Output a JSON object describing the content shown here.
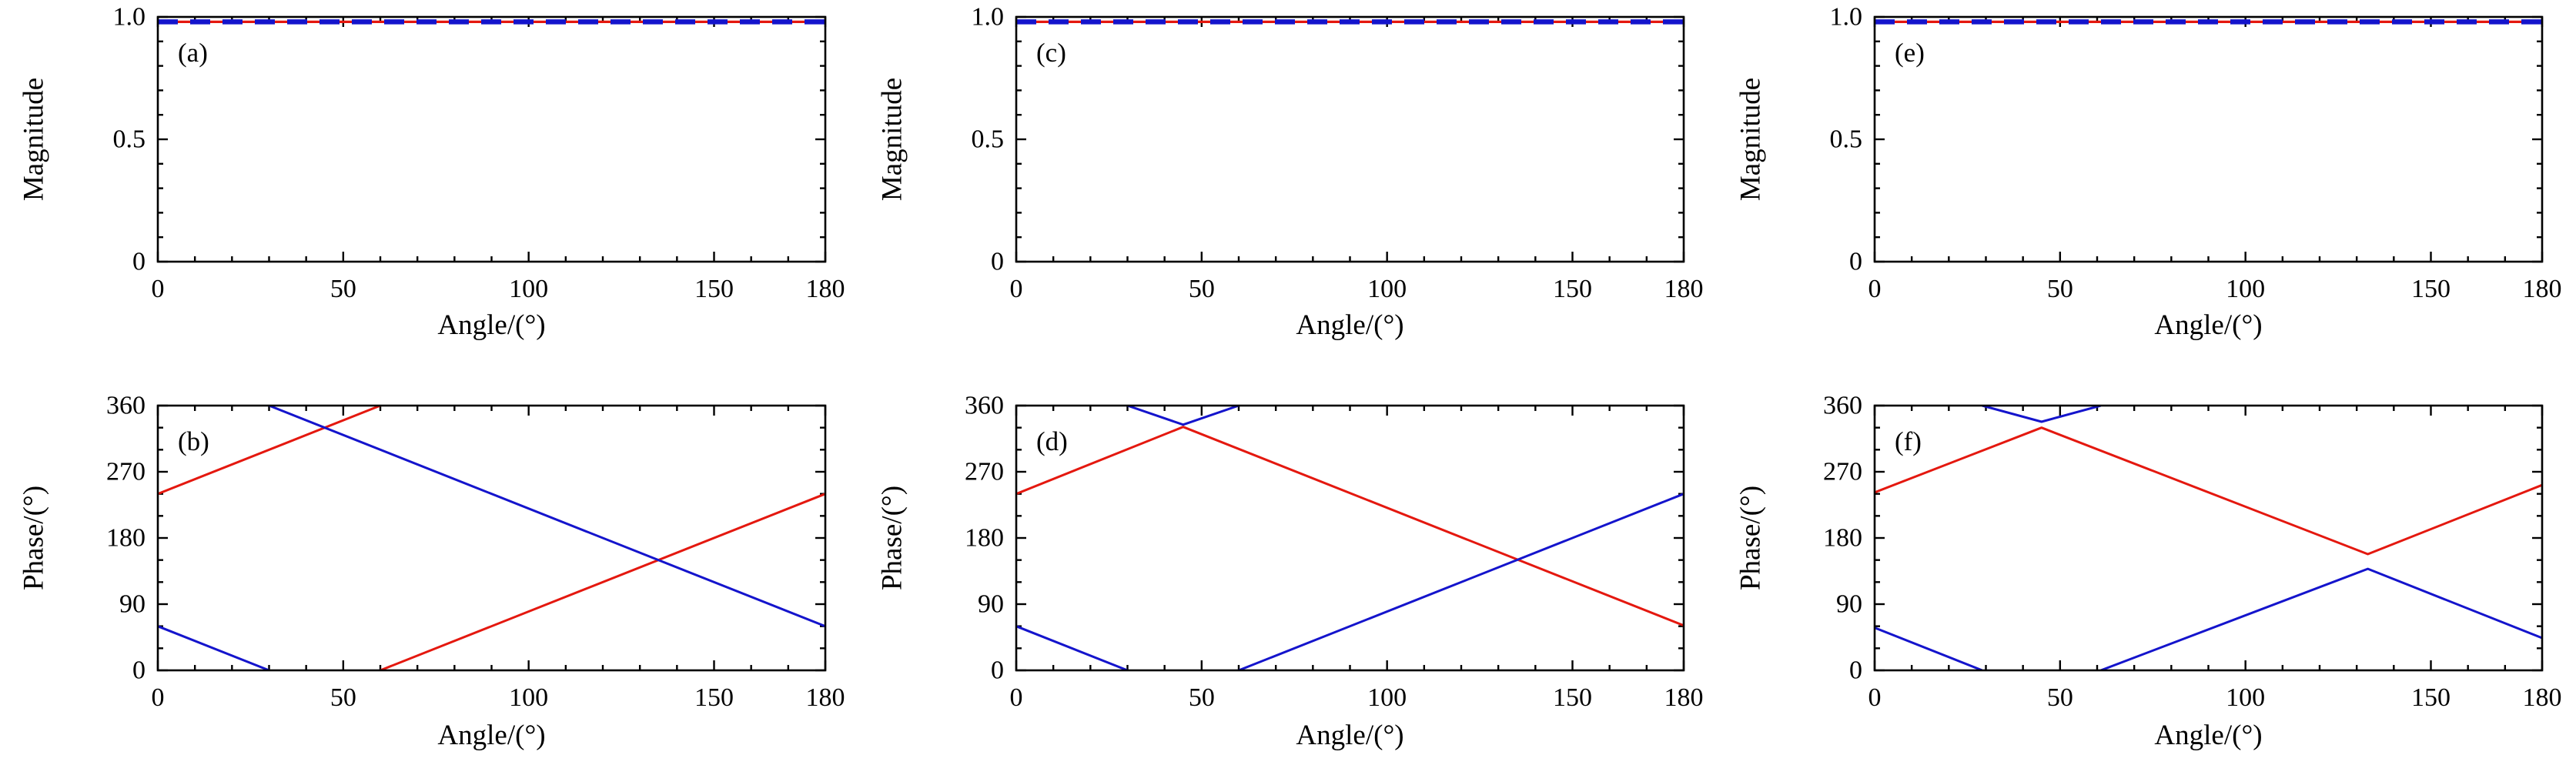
{
  "page": {
    "background": "#ffffff",
    "description": "Six-panel scientific figure: magnitude and phase versus incidence angle"
  },
  "colors": {
    "red": "#e4180f",
    "blue": "#1414cc",
    "frame": "#000000",
    "text": "#000000"
  },
  "chart_data": [
    {
      "id": "a",
      "type": "line",
      "row": 0,
      "panel_label": "(a)",
      "xlabel": "Angle/(°)",
      "ylabel": "Magnitude",
      "xlim": [
        0,
        180
      ],
      "ylim": [
        0,
        1
      ],
      "xticks": [
        0,
        50,
        100,
        150,
        180
      ],
      "xtick_labels": [
        "0",
        "50",
        "100",
        "150",
        "180"
      ],
      "yticks": [
        0,
        0.5,
        1
      ],
      "ytick_labels": [
        "0",
        "0.5",
        "1.0"
      ],
      "x_minor": 10,
      "y_minor": 0.1,
      "grid": false,
      "legend": null,
      "series": [
        {
          "name": "magnitude-red-solid",
          "color": "red",
          "width": 3.2,
          "dash": null,
          "segments": [
            [
              [
                0,
                0.98
              ],
              [
                180,
                0.98
              ]
            ]
          ]
        },
        {
          "name": "magnitude-blue-dashed",
          "color": "blue",
          "width": 6.5,
          "dash": "26 16",
          "segments": [
            [
              [
                0,
                0.98
              ],
              [
                180,
                0.98
              ]
            ]
          ]
        }
      ]
    },
    {
      "id": "b",
      "type": "line",
      "row": 1,
      "panel_label": "(b)",
      "xlabel": "Angle/(°)",
      "ylabel": "Phase/(°)",
      "xlim": [
        0,
        180
      ],
      "ylim": [
        0,
        360
      ],
      "xticks": [
        0,
        50,
        100,
        150,
        180
      ],
      "xtick_labels": [
        "0",
        "50",
        "100",
        "150",
        "180"
      ],
      "yticks": [
        0,
        90,
        180,
        270,
        360
      ],
      "ytick_labels": [
        "0",
        "90",
        "180",
        "270",
        "360"
      ],
      "x_minor": 10,
      "y_minor": 30,
      "grid": false,
      "legend": null,
      "series": [
        {
          "name": "phase-red",
          "color": "red",
          "width": 3,
          "dash": null,
          "segments": [
            [
              [
                0,
                240
              ],
              [
                60,
                360
              ]
            ],
            [
              [
                60,
                0
              ],
              [
                180,
                240
              ]
            ]
          ]
        },
        {
          "name": "phase-blue",
          "color": "blue",
          "width": 3,
          "dash": null,
          "segments": [
            [
              [
                0,
                60
              ],
              [
                30,
                0
              ]
            ],
            [
              [
                30,
                360
              ],
              [
                180,
                60
              ]
            ]
          ]
        }
      ]
    },
    {
      "id": "c",
      "type": "line",
      "row": 0,
      "panel_label": "(c)",
      "xlabel": "Angle/(°)",
      "ylabel": "Magnitude",
      "xlim": [
        0,
        180
      ],
      "ylim": [
        0,
        1
      ],
      "xticks": [
        0,
        50,
        100,
        150,
        180
      ],
      "xtick_labels": [
        "0",
        "50",
        "100",
        "150",
        "180"
      ],
      "yticks": [
        0,
        0.5,
        1
      ],
      "ytick_labels": [
        "0",
        "0.5",
        "1.0"
      ],
      "x_minor": 10,
      "y_minor": 0.1,
      "grid": false,
      "legend": null,
      "series": [
        {
          "name": "magnitude-red-solid",
          "color": "red",
          "width": 3.2,
          "dash": null,
          "segments": [
            [
              [
                0,
                0.98
              ],
              [
                180,
                0.98
              ]
            ]
          ]
        },
        {
          "name": "magnitude-blue-dashed",
          "color": "blue",
          "width": 6.5,
          "dash": "26 16",
          "segments": [
            [
              [
                0,
                0.98
              ],
              [
                180,
                0.98
              ]
            ]
          ]
        }
      ]
    },
    {
      "id": "d",
      "type": "line",
      "row": 1,
      "panel_label": "(d)",
      "xlabel": "Angle/(°)",
      "ylabel": "Phase/(°)",
      "xlim": [
        0,
        180
      ],
      "ylim": [
        0,
        360
      ],
      "xticks": [
        0,
        50,
        100,
        150,
        180
      ],
      "xtick_labels": [
        "0",
        "50",
        "100",
        "150",
        "180"
      ],
      "yticks": [
        0,
        90,
        180,
        270,
        360
      ],
      "ytick_labels": [
        "0",
        "90",
        "180",
        "270",
        "360"
      ],
      "x_minor": 10,
      "y_minor": 30,
      "grid": false,
      "legend": null,
      "series": [
        {
          "name": "phase-red",
          "color": "red",
          "width": 3,
          "dash": null,
          "segments": [
            [
              [
                0,
                240
              ],
              [
                45,
                331
              ],
              [
                180,
                61
              ]
            ]
          ]
        },
        {
          "name": "phase-blue",
          "color": "blue",
          "width": 3,
          "dash": null,
          "segments": [
            [
              [
                0,
                60
              ],
              [
                30,
                0
              ]
            ],
            [
              [
                30,
                360
              ],
              [
                45,
                334
              ],
              [
                60,
                360
              ]
            ],
            [
              [
                60,
                0
              ],
              [
                180,
                240
              ]
            ]
          ]
        }
      ]
    },
    {
      "id": "e",
      "type": "line",
      "row": 0,
      "panel_label": "(e)",
      "xlabel": "Angle/(°)",
      "ylabel": "Magnitude",
      "xlim": [
        0,
        180
      ],
      "ylim": [
        0,
        1
      ],
      "xticks": [
        0,
        50,
        100,
        150,
        180
      ],
      "xtick_labels": [
        "0",
        "50",
        "100",
        "150",
        "180"
      ],
      "yticks": [
        0,
        0.5,
        1
      ],
      "ytick_labels": [
        "0",
        "0.5",
        "1.0"
      ],
      "x_minor": 10,
      "y_minor": 0.1,
      "grid": false,
      "legend": null,
      "series": [
        {
          "name": "magnitude-red-solid",
          "color": "red",
          "width": 3.2,
          "dash": null,
          "segments": [
            [
              [
                0,
                0.98
              ],
              [
                180,
                0.98
              ]
            ]
          ]
        },
        {
          "name": "magnitude-blue-dashed",
          "color": "blue",
          "width": 6.5,
          "dash": "26 16",
          "segments": [
            [
              [
                0,
                0.98
              ],
              [
                180,
                0.98
              ]
            ]
          ]
        }
      ]
    },
    {
      "id": "f",
      "type": "line",
      "row": 1,
      "panel_label": "(f)",
      "xlabel": "Angle/(°)",
      "ylabel": "Phase/(°)",
      "xlim": [
        0,
        180
      ],
      "ylim": [
        0,
        360
      ],
      "xticks": [
        0,
        50,
        100,
        150,
        180
      ],
      "xtick_labels": [
        "0",
        "50",
        "100",
        "150",
        "180"
      ],
      "yticks": [
        0,
        90,
        180,
        270,
        360
      ],
      "ytick_labels": [
        "0",
        "90",
        "180",
        "270",
        "360"
      ],
      "x_minor": 10,
      "y_minor": 30,
      "grid": false,
      "legend": null,
      "series": [
        {
          "name": "phase-red",
          "color": "red",
          "width": 3,
          "dash": null,
          "segments": [
            [
              [
                0,
                242
              ],
              [
                45,
                330
              ],
              [
                133,
                158
              ],
              [
                180,
                252
              ]
            ]
          ]
        },
        {
          "name": "phase-blue",
          "color": "blue",
          "width": 3,
          "dash": null,
          "segments": [
            [
              [
                0,
                58
              ],
              [
                29,
                0
              ]
            ],
            [
              [
                29,
                360
              ],
              [
                45,
                338
              ],
              [
                61,
                360
              ]
            ],
            [
              [
                61,
                0
              ],
              [
                133,
                138
              ],
              [
                180,
                44
              ]
            ]
          ]
        }
      ]
    }
  ]
}
